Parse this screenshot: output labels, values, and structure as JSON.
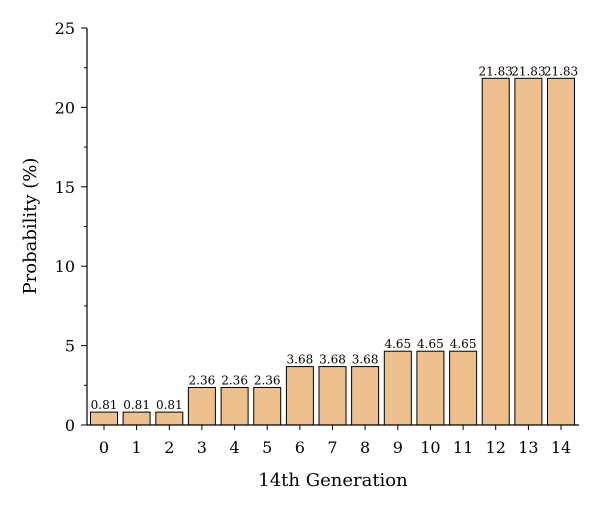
{
  "chart_data": {
    "type": "bar",
    "xlabel": "14th Generation",
    "ylabel": "Probability (%)",
    "categories": [
      "0",
      "1",
      "2",
      "3",
      "4",
      "5",
      "6",
      "7",
      "8",
      "9",
      "10",
      "11",
      "12",
      "13",
      "14"
    ],
    "values": [
      0.81,
      0.81,
      0.81,
      2.36,
      2.36,
      2.36,
      3.68,
      3.68,
      3.68,
      4.65,
      4.65,
      4.65,
      21.83,
      21.83,
      21.83
    ],
    "data_labels": [
      "0.81",
      "0.81",
      "0.81",
      "2.36",
      "2.36",
      "2.36",
      "3.68",
      "3.68",
      "3.68",
      "4.65",
      "4.65",
      "4.65",
      "21.83",
      "21.83",
      "21.83"
    ],
    "ylim": [
      0,
      25
    ],
    "yticks": [
      0,
      5,
      10,
      15,
      20,
      25
    ],
    "ytick_labels": [
      "0",
      "5",
      "10",
      "15",
      "20",
      "25"
    ],
    "grid": false,
    "bar_color": "#EEC08E"
  }
}
